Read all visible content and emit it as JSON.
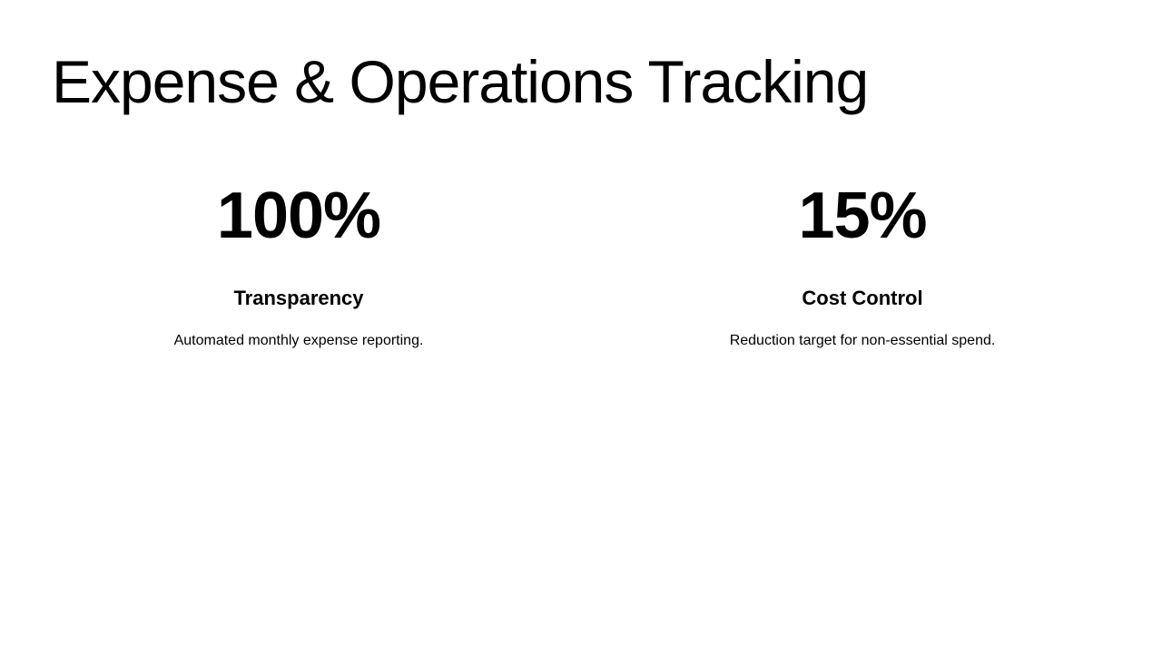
{
  "slide": {
    "title": "Expense & Operations Tracking",
    "stats": [
      {
        "value": "100%",
        "label": "Transparency",
        "description": "Automated monthly expense reporting."
      },
      {
        "value": "15%",
        "label": "Cost Control",
        "description": "Reduction target for non-essential spend."
      }
    ]
  },
  "colors": {
    "background": "#ffffff",
    "text": "#000000"
  }
}
